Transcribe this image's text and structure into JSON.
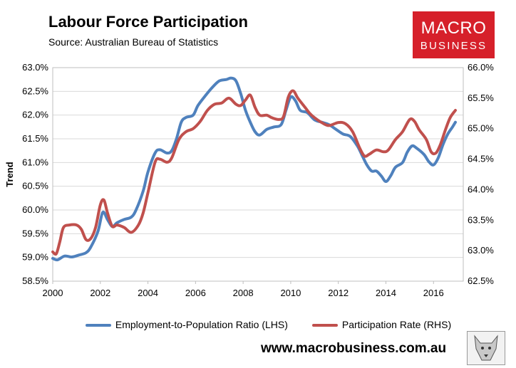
{
  "title": "Labour Force Participation",
  "subtitle": "Source: Australian Bureau of Statistics",
  "brand": {
    "line1": "MACRO",
    "line2": "BUSINESS",
    "color": "#d6202a"
  },
  "website": "www.macrobusiness.com.au",
  "chart_data": {
    "type": "line",
    "ylabel": "Trend",
    "xticks": [
      "2000",
      "2002",
      "2004",
      "2006",
      "2008",
      "2010",
      "2012",
      "2014",
      "2016"
    ],
    "xlim": [
      2000,
      2017.25
    ],
    "y_left": {
      "lim": [
        58.5,
        63.0
      ],
      "ticks": [
        "58.5%",
        "59.0%",
        "59.5%",
        "60.0%",
        "60.5%",
        "61.0%",
        "61.5%",
        "62.0%",
        "62.5%",
        "63.0%"
      ]
    },
    "y_right": {
      "lim": [
        62.5,
        66.0
      ],
      "ticks": [
        "62.5%",
        "63.0%",
        "63.5%",
        "64.0%",
        "64.5%",
        "65.0%",
        "65.5%",
        "66.0%"
      ]
    },
    "grid": true,
    "legend_position": "bottom",
    "series": [
      {
        "name": "Employment-to-Population Ratio (LHS)",
        "axis": "left",
        "color": "#4f81bd",
        "points": [
          [
            2000.0,
            58.98
          ],
          [
            2000.2,
            58.95
          ],
          [
            2000.5,
            59.03
          ],
          [
            2000.8,
            59.01
          ],
          [
            2001.1,
            59.05
          ],
          [
            2001.4,
            59.1
          ],
          [
            2001.6,
            59.22
          ],
          [
            2001.9,
            59.55
          ],
          [
            2002.1,
            59.95
          ],
          [
            2002.3,
            59.8
          ],
          [
            2002.5,
            59.65
          ],
          [
            2002.7,
            59.73
          ],
          [
            2003.0,
            59.8
          ],
          [
            2003.3,
            59.85
          ],
          [
            2003.5,
            60.0
          ],
          [
            2003.8,
            60.4
          ],
          [
            2004.0,
            60.8
          ],
          [
            2004.3,
            61.2
          ],
          [
            2004.5,
            61.27
          ],
          [
            2004.8,
            61.2
          ],
          [
            2005.0,
            61.25
          ],
          [
            2005.2,
            61.5
          ],
          [
            2005.4,
            61.85
          ],
          [
            2005.6,
            61.95
          ],
          [
            2005.9,
            62.0
          ],
          [
            2006.1,
            62.2
          ],
          [
            2006.4,
            62.4
          ],
          [
            2006.7,
            62.58
          ],
          [
            2007.0,
            62.72
          ],
          [
            2007.3,
            62.75
          ],
          [
            2007.5,
            62.78
          ],
          [
            2007.7,
            62.72
          ],
          [
            2007.9,
            62.45
          ],
          [
            2008.1,
            62.1
          ],
          [
            2008.3,
            61.85
          ],
          [
            2008.5,
            61.65
          ],
          [
            2008.7,
            61.58
          ],
          [
            2009.0,
            61.7
          ],
          [
            2009.3,
            61.75
          ],
          [
            2009.6,
            61.8
          ],
          [
            2009.8,
            62.1
          ],
          [
            2010.0,
            62.38
          ],
          [
            2010.2,
            62.3
          ],
          [
            2010.4,
            62.1
          ],
          [
            2010.7,
            62.05
          ],
          [
            2011.0,
            61.9
          ],
          [
            2011.3,
            61.85
          ],
          [
            2011.6,
            61.8
          ],
          [
            2011.9,
            61.7
          ],
          [
            2012.2,
            61.6
          ],
          [
            2012.5,
            61.55
          ],
          [
            2012.8,
            61.35
          ],
          [
            2013.0,
            61.15
          ],
          [
            2013.2,
            60.95
          ],
          [
            2013.4,
            60.82
          ],
          [
            2013.6,
            60.82
          ],
          [
            2013.8,
            60.72
          ],
          [
            2014.0,
            60.6
          ],
          [
            2014.2,
            60.72
          ],
          [
            2014.4,
            60.9
          ],
          [
            2014.7,
            61.0
          ],
          [
            2014.9,
            61.22
          ],
          [
            2015.1,
            61.35
          ],
          [
            2015.3,
            61.3
          ],
          [
            2015.6,
            61.17
          ],
          [
            2015.8,
            61.02
          ],
          [
            2016.0,
            60.95
          ],
          [
            2016.2,
            61.1
          ],
          [
            2016.4,
            61.38
          ],
          [
            2016.6,
            61.6
          ],
          [
            2016.8,
            61.75
          ],
          [
            2016.92,
            61.85
          ]
        ]
      },
      {
        "name": "Participation Rate (RHS)",
        "axis": "right",
        "color": "#c0504d",
        "points": [
          [
            2000.0,
            62.98
          ],
          [
            2000.15,
            62.95
          ],
          [
            2000.3,
            63.15
          ],
          [
            2000.45,
            63.38
          ],
          [
            2000.7,
            63.42
          ],
          [
            2001.0,
            63.42
          ],
          [
            2001.2,
            63.35
          ],
          [
            2001.4,
            63.18
          ],
          [
            2001.6,
            63.2
          ],
          [
            2001.8,
            63.38
          ],
          [
            2002.0,
            63.75
          ],
          [
            2002.15,
            63.83
          ],
          [
            2002.3,
            63.62
          ],
          [
            2002.5,
            63.4
          ],
          [
            2002.7,
            63.42
          ],
          [
            2003.0,
            63.38
          ],
          [
            2003.3,
            63.3
          ],
          [
            2003.6,
            63.42
          ],
          [
            2003.8,
            63.62
          ],
          [
            2004.0,
            63.95
          ],
          [
            2004.3,
            64.45
          ],
          [
            2004.5,
            64.5
          ],
          [
            2004.8,
            64.45
          ],
          [
            2005.0,
            64.52
          ],
          [
            2005.3,
            64.82
          ],
          [
            2005.6,
            64.95
          ],
          [
            2005.9,
            65.0
          ],
          [
            2006.2,
            65.12
          ],
          [
            2006.5,
            65.3
          ],
          [
            2006.8,
            65.4
          ],
          [
            2007.1,
            65.42
          ],
          [
            2007.4,
            65.5
          ],
          [
            2007.7,
            65.4
          ],
          [
            2007.9,
            65.38
          ],
          [
            2008.1,
            65.47
          ],
          [
            2008.3,
            65.55
          ],
          [
            2008.5,
            65.35
          ],
          [
            2008.7,
            65.22
          ],
          [
            2009.0,
            65.22
          ],
          [
            2009.2,
            65.18
          ],
          [
            2009.5,
            65.15
          ],
          [
            2009.7,
            65.2
          ],
          [
            2009.9,
            65.52
          ],
          [
            2010.1,
            65.62
          ],
          [
            2010.3,
            65.5
          ],
          [
            2010.6,
            65.35
          ],
          [
            2010.8,
            65.25
          ],
          [
            2011.0,
            65.18
          ],
          [
            2011.3,
            65.1
          ],
          [
            2011.6,
            65.05
          ],
          [
            2012.0,
            65.1
          ],
          [
            2012.3,
            65.08
          ],
          [
            2012.6,
            64.95
          ],
          [
            2012.9,
            64.68
          ],
          [
            2013.1,
            64.55
          ],
          [
            2013.3,
            64.58
          ],
          [
            2013.6,
            64.65
          ],
          [
            2013.9,
            64.62
          ],
          [
            2014.1,
            64.65
          ],
          [
            2014.4,
            64.82
          ],
          [
            2014.7,
            64.95
          ],
          [
            2015.0,
            65.15
          ],
          [
            2015.2,
            65.12
          ],
          [
            2015.4,
            64.98
          ],
          [
            2015.7,
            64.82
          ],
          [
            2015.9,
            64.62
          ],
          [
            2016.1,
            64.6
          ],
          [
            2016.3,
            64.75
          ],
          [
            2016.5,
            64.98
          ],
          [
            2016.7,
            65.18
          ],
          [
            2016.92,
            65.3
          ]
        ]
      }
    ]
  }
}
